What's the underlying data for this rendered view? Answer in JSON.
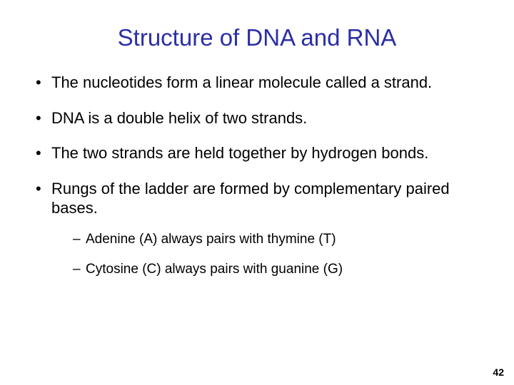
{
  "title": "Structure of DNA and RNA",
  "title_color": "#2b2ea6",
  "body_color": "#000000",
  "background_color": "#ffffff",
  "title_fontsize": 33,
  "bullet_fontsize": 22,
  "sub_fontsize": 19,
  "bullets": [
    {
      "text": "The nucleotides form a linear molecule called a strand."
    },
    {
      "text": "DNA is a double helix of two strands."
    },
    {
      "text": "The two strands are held together by hydrogen bonds."
    },
    {
      "text": "Rungs of the ladder are formed by complementary paired bases.",
      "sub": [
        "Adenine (A) always pairs with thymine (T)",
        "Cytosine (C) always pairs with guanine (G)"
      ]
    }
  ],
  "page_number": "42"
}
